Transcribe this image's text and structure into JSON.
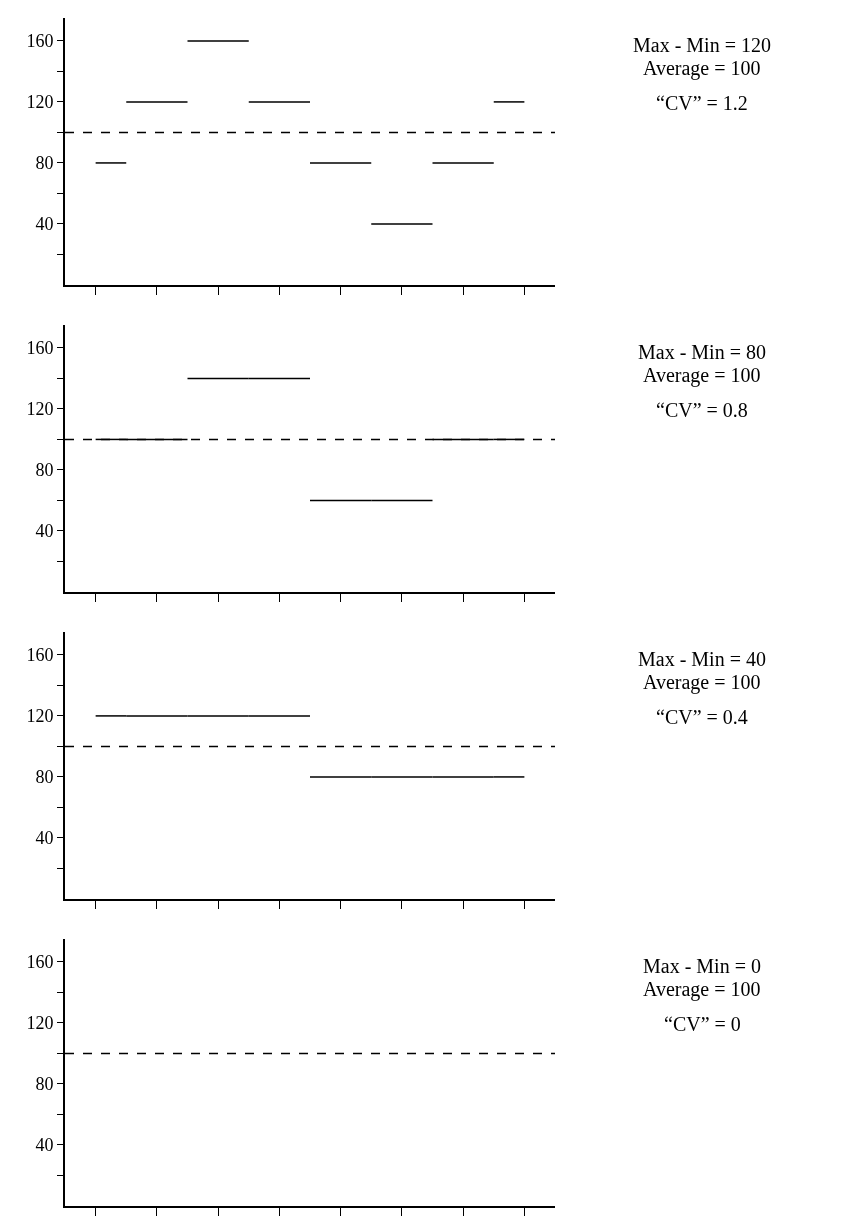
{
  "chart_data": [
    {
      "type": "step",
      "categories": [
        null,
        null,
        null,
        null,
        null,
        null,
        null,
        null
      ],
      "values": [
        80,
        120,
        160,
        120,
        80,
        40,
        80,
        120
      ],
      "color": "#000000",
      "line_style": "solid",
      "ylim": [
        0,
        175
      ],
      "yticks": [
        {
          "value": 20,
          "label": null
        },
        40,
        {
          "value": 60,
          "label": null
        },
        80,
        {
          "value": 100,
          "label": null
        },
        120,
        {
          "value": 140,
          "label": null
        },
        160
      ],
      "tick_labels": "y",
      "ref_lines": [
        {
          "axis": "y",
          "value": 100,
          "line_style": "dashed",
          "color": "#000000"
        }
      ],
      "annotations": [
        "Max - Min = 120",
        "Average = 100",
        "“CV” = 1.2"
      ]
    },
    {
      "type": "step",
      "categories": [
        null,
        null,
        null,
        null,
        null,
        null,
        null,
        null
      ],
      "values": [
        100,
        100,
        140,
        140,
        60,
        60,
        100,
        100
      ],
      "color": "#000000",
      "line_style": "solid",
      "ylim": [
        0,
        175
      ],
      "yticks": [
        {
          "value": 20,
          "label": null
        },
        40,
        {
          "value": 60,
          "label": null
        },
        80,
        {
          "value": 100,
          "label": null
        },
        120,
        {
          "value": 140,
          "label": null
        },
        160
      ],
      "tick_labels": "y",
      "ref_lines": [
        {
          "axis": "y",
          "value": 100,
          "line_style": "dashed",
          "color": "#000000"
        }
      ],
      "annotations": [
        "Max - Min = 80",
        "Average = 100",
        "“CV” = 0.8"
      ]
    },
    {
      "type": "step",
      "categories": [
        null,
        null,
        null,
        null,
        null,
        null,
        null,
        null
      ],
      "values": [
        120,
        120,
        120,
        120,
        80,
        80,
        80,
        80
      ],
      "color": "#000000",
      "line_style": "solid",
      "ylim": [
        0,
        175
      ],
      "yticks": [
        {
          "value": 20,
          "label": null
        },
        40,
        {
          "value": 60,
          "label": null
        },
        80,
        {
          "value": 100,
          "label": null
        },
        120,
        {
          "value": 140,
          "label": null
        },
        160
      ],
      "tick_labels": "y",
      "ref_lines": [
        {
          "axis": "y",
          "value": 100,
          "line_style": "dashed",
          "color": "#000000"
        }
      ],
      "annotations": [
        "Max - Min = 40",
        "Average = 100",
        "“CV” = 0.4"
      ]
    },
    {
      "type": "step",
      "categories": [
        null,
        null,
        null,
        null,
        null,
        null,
        null,
        null
      ],
      "values": [
        null,
        null,
        null,
        null,
        null,
        null,
        null,
        null
      ],
      "color": "#000000",
      "line_style": "solid",
      "ylim": [
        0,
        175
      ],
      "yticks": [
        {
          "value": 20,
          "label": null
        },
        40,
        {
          "value": 60,
          "label": null
        },
        80,
        {
          "value": 100,
          "label": null
        },
        120,
        {
          "value": 140,
          "label": null
        },
        160
      ],
      "tick_labels": "y",
      "ref_lines": [
        {
          "axis": "y",
          "value": 100,
          "line_style": "dashed",
          "color": "#000000"
        }
      ],
      "annotations": [
        "Max - Min = 0",
        "Average = 100",
        "“CV” = 0"
      ]
    }
  ]
}
